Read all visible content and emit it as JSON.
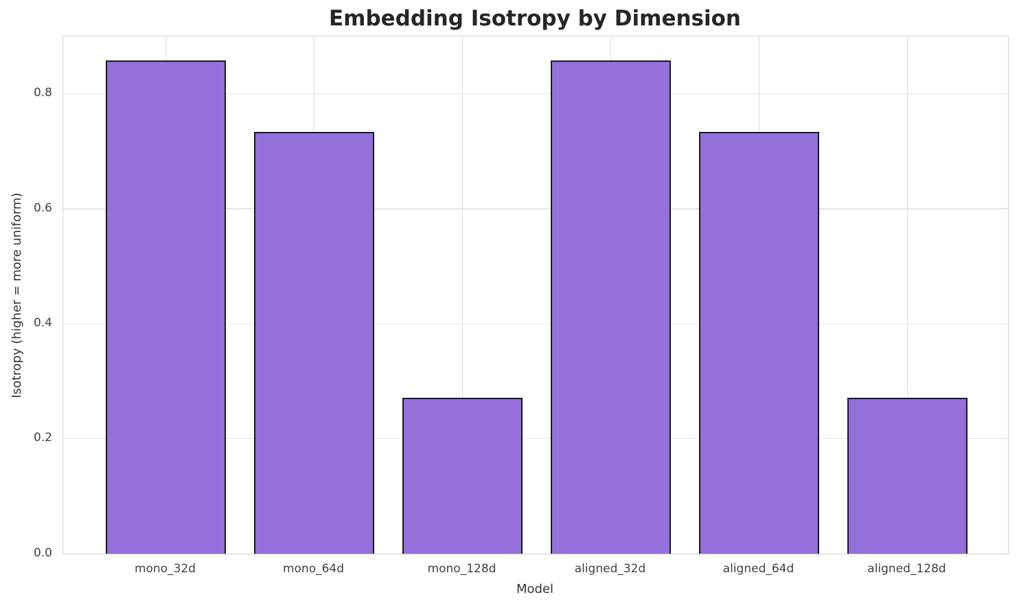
{
  "chart_data": {
    "type": "bar",
    "title": "Embedding Isotropy by Dimension",
    "xlabel": "Model",
    "ylabel": "Isotropy (higher = more uniform)",
    "categories": [
      "mono_32d",
      "mono_64d",
      "mono_128d",
      "aligned_32d",
      "aligned_64d",
      "aligned_128d"
    ],
    "values": [
      0.858,
      0.734,
      0.271,
      0.858,
      0.734,
      0.271
    ],
    "yticks": [
      0.0,
      0.2,
      0.4,
      0.6,
      0.8
    ],
    "ylim": [
      0,
      0.9
    ],
    "grid": true,
    "legend": "none",
    "colors": {
      "bar_fill": "#9370DB",
      "bar_edge": "#1a1a1a",
      "grid_line": "#e0e0e0",
      "spine": "#cfcfcf",
      "title_text": "#262626",
      "tick_text": "#404040"
    }
  }
}
